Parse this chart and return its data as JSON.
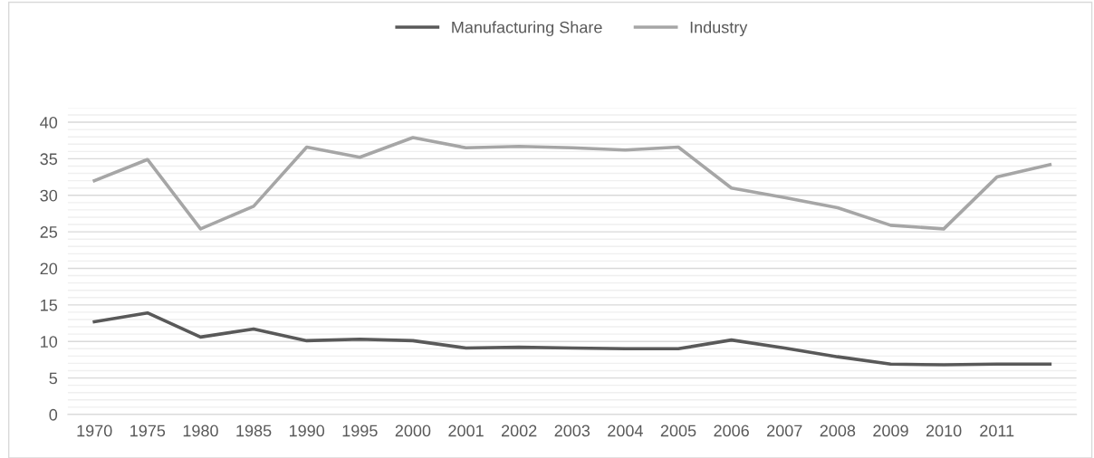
{
  "chart_data": {
    "type": "line",
    "categories": [
      "1970",
      "1975",
      "1980",
      "1985",
      "1990",
      "1995",
      "2000",
      "2001",
      "2002",
      "2003",
      "2004",
      "2005",
      "2006",
      "2007",
      "2008",
      "2009",
      "2010",
      "2011",
      null
    ],
    "series": [
      {
        "name": "Manufacturing Share",
        "color": "#595959",
        "values": [
          12.7,
          13.9,
          10.6,
          11.7,
          10.1,
          10.3,
          10.1,
          9.1,
          9.2,
          9.1,
          9.0,
          9.0,
          10.2,
          9.1,
          7.9,
          6.9,
          6.8,
          6.9,
          6.9
        ]
      },
      {
        "name": "Industry",
        "color": "#a6a6a6",
        "values": [
          32.0,
          34.9,
          25.4,
          28.5,
          36.6,
          35.2,
          37.9,
          36.5,
          36.7,
          36.5,
          36.2,
          36.6,
          31.0,
          29.7,
          28.3,
          25.9,
          25.4,
          32.5,
          34.2
        ]
      }
    ],
    "ylim": [
      0,
      42
    ],
    "yticks": [
      0,
      5,
      10,
      15,
      20,
      25,
      30,
      35,
      40
    ],
    "grid": "y",
    "legend": "top",
    "marker": "none",
    "line_style": "solid"
  }
}
